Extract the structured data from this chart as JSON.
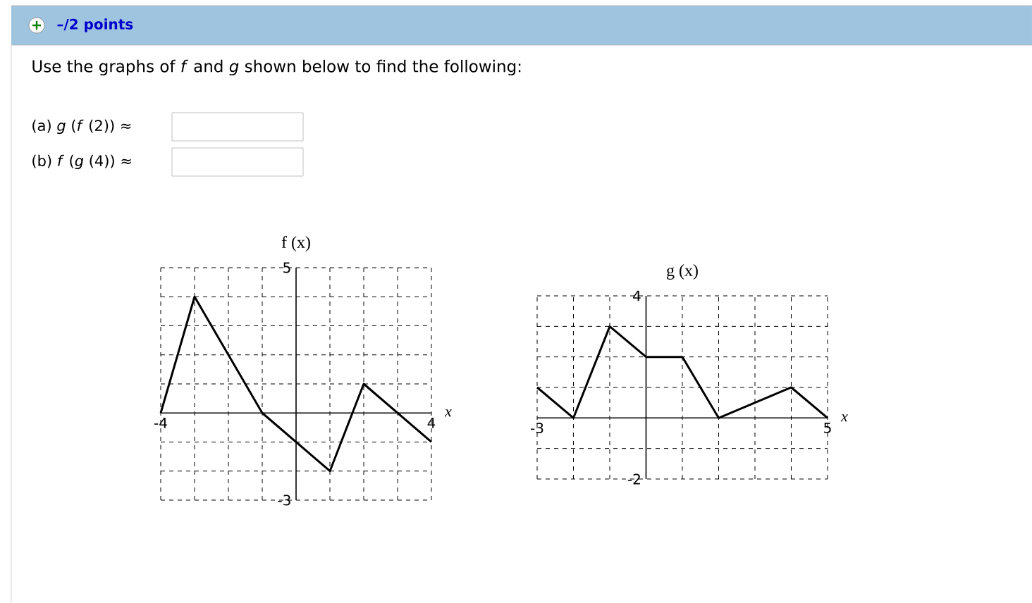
{
  "chart_data": [
    {
      "type": "line",
      "title": "f (x)",
      "xlabel": "x",
      "x": [
        -4,
        -3,
        -1,
        1,
        2,
        3,
        4
      ],
      "values": [
        0,
        4,
        0,
        -2,
        1,
        0,
        -1
      ],
      "color": "#000000",
      "xlim": [
        -4,
        4
      ],
      "ylim": [
        -3,
        5
      ],
      "xticks": [
        -4,
        {
          "value": -3,
          "label": null
        },
        {
          "value": -2,
          "label": null
        },
        {
          "value": -1,
          "label": null
        },
        {
          "value": 0,
          "label": null
        },
        {
          "value": 1,
          "label": null
        },
        {
          "value": 2,
          "label": null
        },
        {
          "value": 3,
          "label": null
        },
        4
      ],
      "yticks": [
        -3,
        {
          "value": -2,
          "label": null
        },
        {
          "value": -1,
          "label": null
        },
        {
          "value": 0,
          "label": null
        },
        {
          "value": 1,
          "label": null
        },
        {
          "value": 2,
          "label": null
        },
        {
          "value": 3,
          "label": null
        },
        {
          "value": 4,
          "label": null
        },
        5
      ],
      "grid": true,
      "line_style": "solid",
      "annotations": [
        "–/2 points",
        "Use the graphs of *f* and *g* shown below to find the following:",
        "(a) *g* (*f* (2)) ≈",
        "(b) *f* (*g* (4)) ≈"
      ]
    },
    {
      "type": "line",
      "title": "g (x)",
      "xlabel": "x",
      "x": [
        -3,
        -2,
        -1,
        0,
        1,
        2,
        4,
        5
      ],
      "values": [
        1,
        0,
        3,
        2,
        2,
        0,
        1,
        0
      ],
      "color": "#000000",
      "xlim": [
        -3,
        5
      ],
      "ylim": [
        -2,
        4
      ],
      "xticks": [
        -3,
        {
          "value": -2,
          "label": null
        },
        {
          "value": -1,
          "label": null
        },
        {
          "value": 0,
          "label": null
        },
        {
          "value": 1,
          "label": null
        },
        {
          "value": 2,
          "label": null
        },
        {
          "value": 3,
          "label": null
        },
        {
          "value": 4,
          "label": null
        },
        5
      ],
      "yticks": [
        -2,
        {
          "value": -1,
          "label": null
        },
        {
          "value": 0,
          "label": null
        },
        {
          "value": 1,
          "label": null
        },
        {
          "value": 2,
          "label": null
        },
        {
          "value": 3,
          "label": null
        },
        4
      ],
      "grid": true,
      "line_style": "solid"
    }
  ]
}
